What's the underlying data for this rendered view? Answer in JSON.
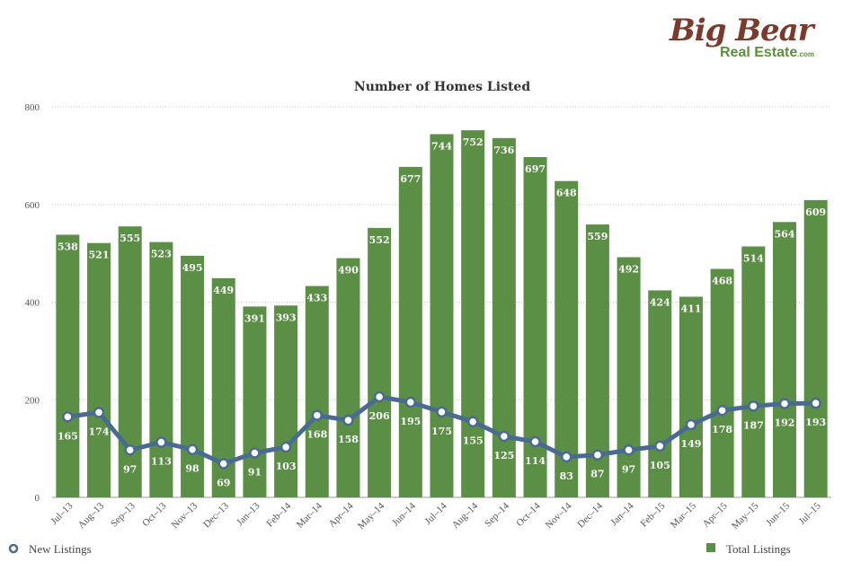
{
  "logo": {
    "line1": "Big Bear",
    "line2": "Real Estate",
    "suffix": ".com"
  },
  "chart_data": {
    "type": "bar",
    "title": "Number of Homes Listed",
    "categories": [
      "Jul–13",
      "Aug–13",
      "Sep–13",
      "Oct–13",
      "Nov–13",
      "Dec–13",
      "Jan–13",
      "Feb–14",
      "Mar–14",
      "Apr–14",
      "May–14",
      "Jun–14",
      "Jul–14",
      "Aug–14",
      "Sep–14",
      "Oct–14",
      "Nov–14",
      "Dec–14",
      "Jan–14",
      "Feb–15",
      "Mar–15",
      "Apr–15",
      "May–15",
      "Jun–15",
      "Jul–15"
    ],
    "series": [
      {
        "name": "Total Listings",
        "type": "bar",
        "color": "#5b8f45",
        "values": [
          538,
          521,
          555,
          523,
          495,
          449,
          391,
          393,
          433,
          490,
          552,
          677,
          744,
          752,
          736,
          697,
          648,
          559,
          492,
          424,
          411,
          468,
          514,
          564,
          609
        ]
      },
      {
        "name": "New Listings",
        "type": "line",
        "color": "#4a6b91",
        "values": [
          165,
          174,
          97,
          113,
          98,
          69,
          91,
          103,
          168,
          158,
          206,
          195,
          175,
          155,
          125,
          114,
          83,
          87,
          97,
          105,
          149,
          178,
          187,
          192,
          193
        ]
      }
    ],
    "ylim": [
      0,
      800
    ],
    "yticks": [
      0,
      200,
      400,
      600,
      800
    ],
    "grid": true,
    "legend": {
      "left": "New Listings",
      "right": "Total Listings"
    }
  }
}
